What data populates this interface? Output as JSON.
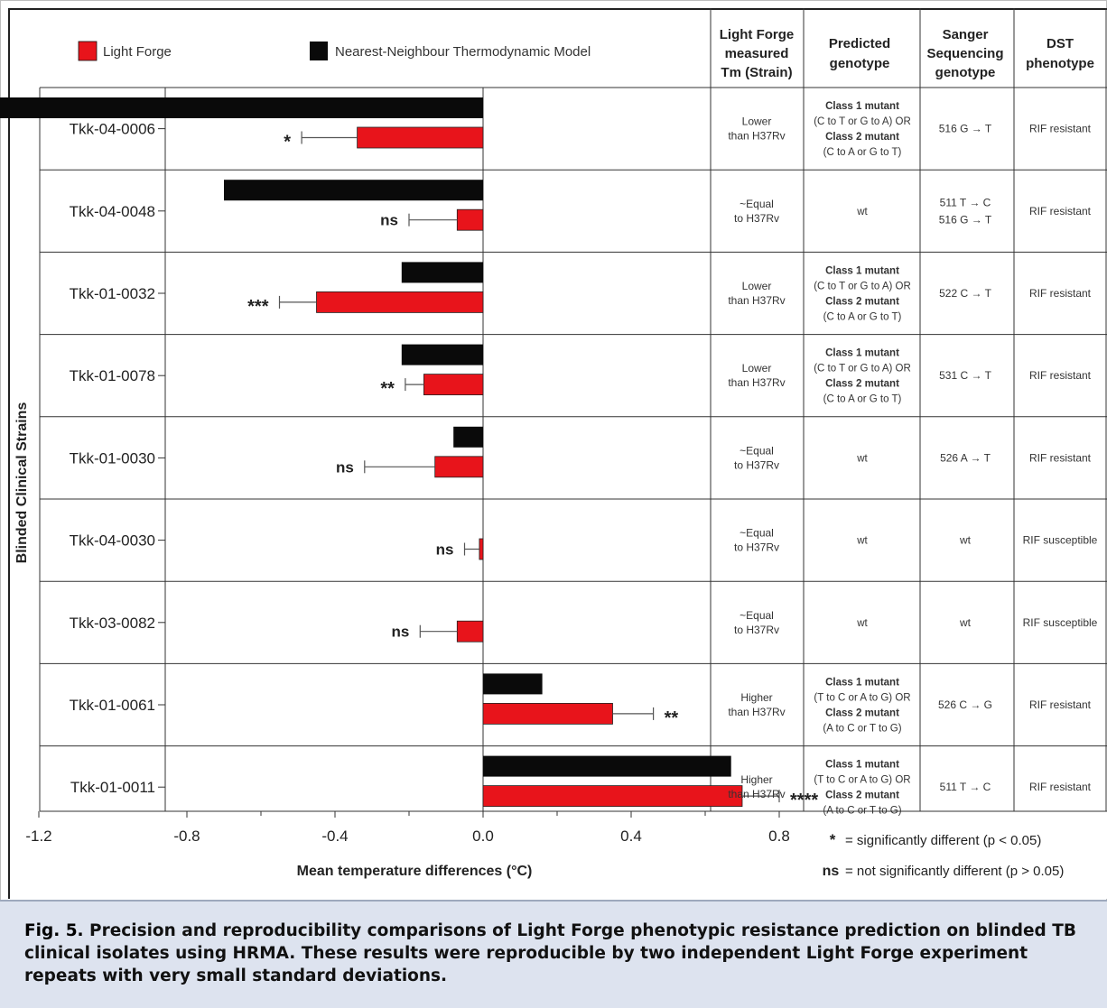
{
  "legend": [
    {
      "label": "Light Forge",
      "color": "#e8141b"
    },
    {
      "label": "Nearest-Neighbour Thermodynamic Model",
      "color": "#0a0a0a"
    }
  ],
  "chart_data": {
    "type": "bar",
    "orientation": "horizontal",
    "ylabel": "Blinded Clinical Strains",
    "xlabel": "Mean temperature differences (°C)",
    "xlim": [
      -1.5,
      1.0
    ],
    "xticks": [
      "-1.2",
      "-0.8",
      "-0.4",
      "0.0",
      "0.4",
      "0.8"
    ],
    "tick_values": [
      -1.2,
      -0.8,
      -0.4,
      0.0,
      0.4,
      0.8
    ],
    "categories": [
      "Tkk-04-0006",
      "Tkk-04-0048",
      "Tkk-01-0032",
      "Tkk-01-0078",
      "Tkk-01-0030",
      "Tkk-04-0030",
      "Tkk-03-0082",
      "Tkk-01-0061",
      "Tkk-01-0011"
    ],
    "series": [
      {
        "name": "Nearest-Neighbour Thermodynamic Model",
        "color": "#0a0a0a",
        "values": [
          -1.37,
          -0.7,
          -0.22,
          -0.22,
          -0.08,
          0.0,
          0.0,
          0.16,
          0.67
        ]
      },
      {
        "name": "Light Forge",
        "color": "#e8141b",
        "values": [
          -0.34,
          -0.07,
          -0.45,
          -0.16,
          -0.13,
          -0.01,
          -0.07,
          0.35,
          0.7
        ],
        "errors": [
          0.15,
          0.13,
          0.1,
          0.05,
          0.19,
          0.04,
          0.1,
          0.11,
          0.1
        ]
      }
    ],
    "significance": [
      "*",
      "ns",
      "***",
      "**",
      "ns",
      "ns",
      "ns",
      "**",
      "****"
    ],
    "grid": false
  },
  "table": {
    "headers": [
      "Light Forge measured Tm (Strain)",
      "Predicted genotype",
      "Sanger Sequencing genotype",
      "DST phenotype"
    ],
    "rows": [
      {
        "tm": [
          "Lower",
          "than H37Rv"
        ],
        "predicted": [
          "Class 1 mutant",
          "(C to T or G to A) OR",
          "Class 2 mutant",
          "(C to A or G to T)"
        ],
        "sanger": [
          "516 G → T"
        ],
        "dst": "RIF resistant"
      },
      {
        "tm": [
          "~Equal",
          "to H37Rv"
        ],
        "predicted": [
          "wt"
        ],
        "sanger": [
          "511 T → C",
          "516 G → T"
        ],
        "dst": "RIF resistant"
      },
      {
        "tm": [
          "Lower",
          "than H37Rv"
        ],
        "predicted": [
          "Class 1 mutant",
          "(C to T or G to A) OR",
          "Class 2 mutant",
          "(C to A or G to T)"
        ],
        "sanger": [
          "522 C → T"
        ],
        "dst": "RIF resistant"
      },
      {
        "tm": [
          "Lower",
          "than H37Rv"
        ],
        "predicted": [
          "Class 1 mutant",
          "(C to T or G to A) OR",
          "Class 2 mutant",
          "(C to A or G to T)"
        ],
        "sanger": [
          "531 C → T"
        ],
        "dst": "RIF resistant"
      },
      {
        "tm": [
          "~Equal",
          "to H37Rv"
        ],
        "predicted": [
          "wt"
        ],
        "sanger": [
          "526 A → T"
        ],
        "dst": "RIF resistant"
      },
      {
        "tm": [
          "~Equal",
          "to H37Rv"
        ],
        "predicted": [
          "wt"
        ],
        "sanger": [
          "wt"
        ],
        "dst": "RIF susceptible"
      },
      {
        "tm": [
          "~Equal",
          "to H37Rv"
        ],
        "predicted": [
          "wt"
        ],
        "sanger": [
          "wt"
        ],
        "dst": "RIF susceptible"
      },
      {
        "tm": [
          "Higher",
          "than H37Rv"
        ],
        "predicted": [
          "Class 1 mutant",
          "(T to C or A to G) OR",
          "Class 2 mutant",
          "(A to C or T to G)"
        ],
        "sanger": [
          "526 C → G"
        ],
        "dst": "RIF resistant"
      },
      {
        "tm": [
          "Higher",
          "than H37Rv"
        ],
        "predicted": [
          "Class 1 mutant",
          "(T to C or A to G) OR",
          "Class 2 mutant",
          "(A to C or T to G)"
        ],
        "sanger": [
          "511 T → C"
        ],
        "dst": "RIF resistant"
      }
    ]
  },
  "footnotes": [
    {
      "symbol": "*",
      "text": "= significantly different (p < 0.05)"
    },
    {
      "symbol": "ns",
      "text": "= not significantly different (p > 0.05)"
    }
  ],
  "caption": {
    "label": "Fig. 5.",
    "text": "Precision and reproducibility comparisons of Light Forge phenotypic resistance prediction on blinded TB clinical isolates using HRMA. These results were reproducible by two independent Light Forge experiment repeats with very small standard deviations."
  }
}
